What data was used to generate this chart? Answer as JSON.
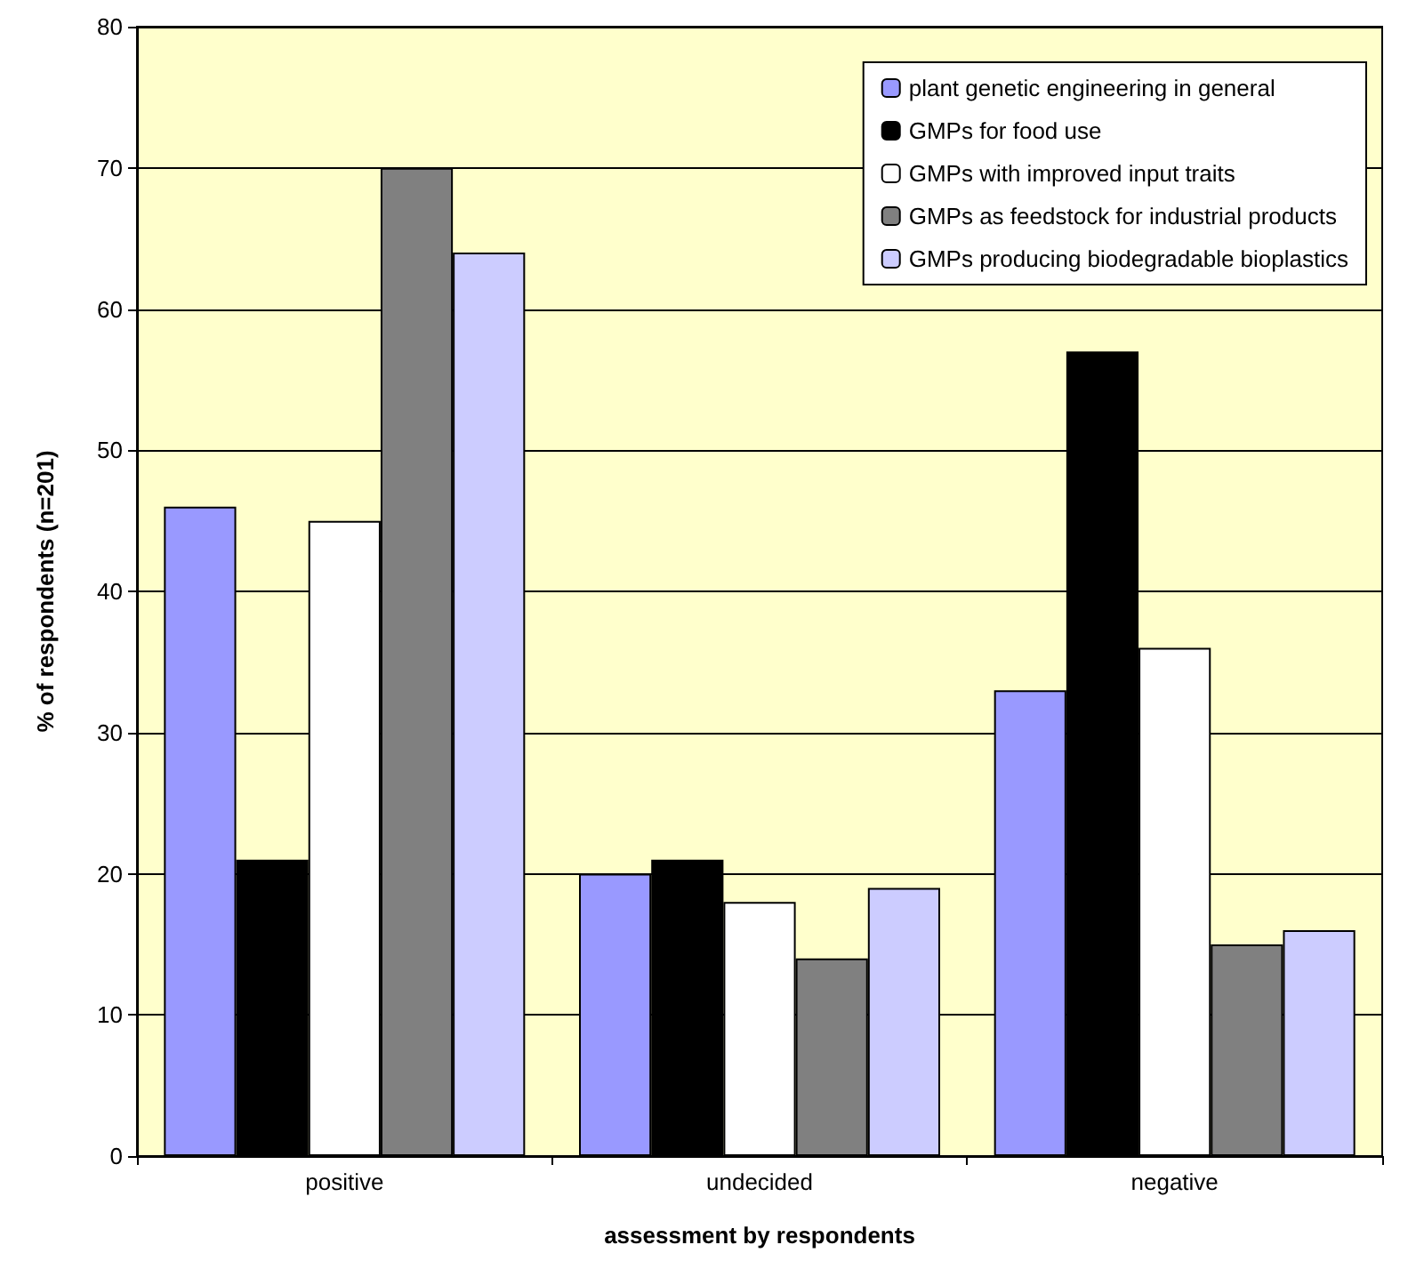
{
  "chart_data": {
    "type": "bar",
    "xlabel": "assessment by respondents",
    "ylabel": "% of respondents (n=201)",
    "categories": [
      "positive",
      "undecided",
      "negative"
    ],
    "series": [
      {
        "name": "plant genetic engineering in general",
        "color": "#9999ff",
        "values": [
          46,
          20,
          33
        ]
      },
      {
        "name": "GMPs for food use",
        "color": "#000000",
        "values": [
          21,
          21,
          57
        ]
      },
      {
        "name": "GMPs with improved input traits",
        "color": "#ffffff",
        "values": [
          45,
          18,
          36
        ]
      },
      {
        "name": "GMPs as feedstock for industrial products",
        "color": "#808080",
        "values": [
          70,
          14,
          15
        ]
      },
      {
        "name": "GMPs producing biodegradable bioplastics",
        "color": "#ccccff",
        "values": [
          64,
          19,
          16
        ]
      }
    ],
    "ylim": [
      0,
      80
    ],
    "yticks": [
      0,
      10,
      20,
      30,
      40,
      50,
      60,
      70,
      80
    ],
    "grid": "y",
    "legend": "top right"
  }
}
